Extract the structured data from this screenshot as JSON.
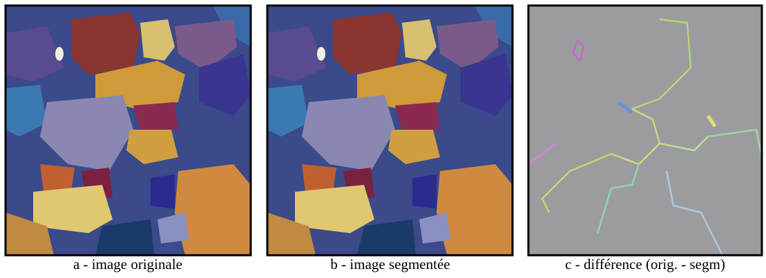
{
  "panels": [
    {
      "caption": "a - image originale"
    },
    {
      "caption": "b - image segmentée"
    },
    {
      "caption": "c - différence (orig. - segm)"
    }
  ]
}
